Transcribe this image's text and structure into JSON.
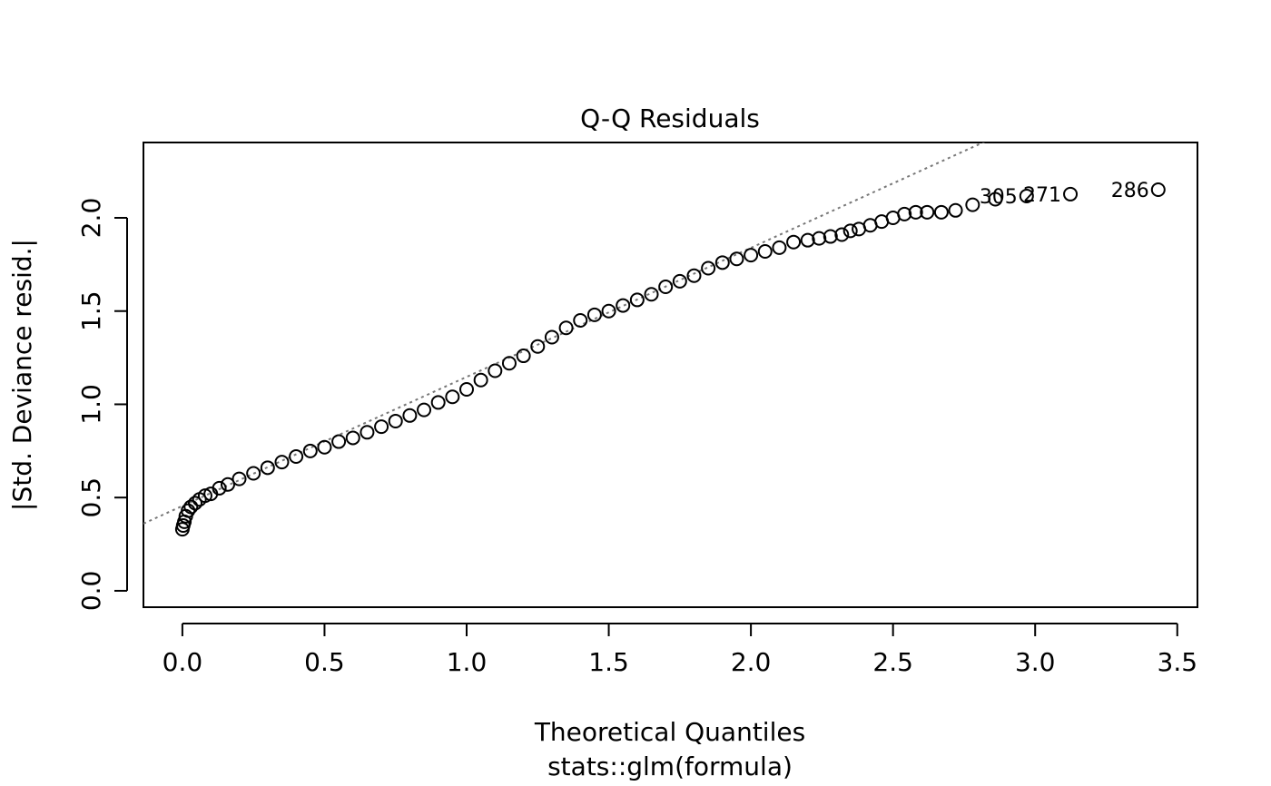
{
  "chart_data": {
    "type": "scatter",
    "title": "Q-Q Residuals",
    "xlabel": "Theoretical Quantiles",
    "subtitle": "stats::glm(formula)",
    "ylabel": "|Std. Deviance resid.|",
    "x": [
      0,
      0.003,
      0.007,
      0.012,
      0.02,
      0.03,
      0.045,
      0.06,
      0.08,
      0.1,
      0.13,
      0.16,
      0.2,
      0.25,
      0.3,
      0.35,
      0.4,
      0.45,
      0.5,
      0.55,
      0.6,
      0.65,
      0.7,
      0.75,
      0.8,
      0.85,
      0.9,
      0.95,
      1.0,
      1.05,
      1.1,
      1.15,
      1.2,
      1.25,
      1.3,
      1.35,
      1.4,
      1.45,
      1.5,
      1.55,
      1.6,
      1.65,
      1.7,
      1.75,
      1.8,
      1.85,
      1.9,
      1.95,
      2.0,
      2.05,
      2.1,
      2.15,
      2.2,
      2.24,
      2.28,
      2.32,
      2.35,
      2.38,
      2.42,
      2.46,
      2.5,
      2.54,
      2.58,
      2.62,
      2.67,
      2.72,
      2.78,
      2.86,
      2.97,
      3.124,
      3.433
    ],
    "y": [
      0.33,
      0.35,
      0.37,
      0.4,
      0.43,
      0.45,
      0.47,
      0.49,
      0.51,
      0.52,
      0.55,
      0.57,
      0.6,
      0.63,
      0.66,
      0.69,
      0.72,
      0.75,
      0.77,
      0.8,
      0.82,
      0.85,
      0.88,
      0.91,
      0.94,
      0.97,
      1.01,
      1.04,
      1.08,
      1.13,
      1.18,
      1.22,
      1.26,
      1.31,
      1.36,
      1.41,
      1.45,
      1.48,
      1.5,
      1.53,
      1.56,
      1.59,
      1.63,
      1.66,
      1.69,
      1.73,
      1.76,
      1.78,
      1.8,
      1.82,
      1.84,
      1.87,
      1.88,
      1.89,
      1.9,
      1.91,
      1.93,
      1.94,
      1.96,
      1.98,
      2.0,
      2.02,
      2.03,
      2.03,
      2.03,
      2.04,
      2.07,
      2.1,
      2.117,
      2.127,
      2.151
    ],
    "point_labels": [
      null,
      null,
      null,
      null,
      null,
      null,
      null,
      null,
      null,
      null,
      null,
      null,
      null,
      null,
      null,
      null,
      null,
      null,
      null,
      null,
      null,
      null,
      null,
      null,
      null,
      null,
      null,
      null,
      null,
      null,
      null,
      null,
      null,
      null,
      null,
      null,
      null,
      null,
      null,
      null,
      null,
      null,
      null,
      null,
      null,
      null,
      null,
      null,
      null,
      null,
      null,
      null,
      null,
      null,
      null,
      null,
      null,
      null,
      null,
      null,
      null,
      null,
      null,
      null,
      null,
      null,
      null,
      null,
      "305",
      "271",
      "286"
    ],
    "reference_line": {
      "intercept": 0.455,
      "slope": 0.692
    },
    "color": "#000000",
    "xlim": [
      -0.137,
      3.571
    ],
    "ylim": [
      -0.088,
      2.404
    ],
    "xticks": [
      {
        "value": 0,
        "label": "0.0"
      },
      {
        "value": 0.5,
        "label": "0.5"
      },
      {
        "value": 1,
        "label": "1.0"
      },
      {
        "value": 1.5,
        "label": "1.5"
      },
      {
        "value": 2,
        "label": "2.0"
      },
      {
        "value": 2.5,
        "label": "2.5"
      },
      {
        "value": 3,
        "label": "3.0"
      },
      {
        "value": 3.5,
        "label": "3.5"
      }
    ],
    "yticks": [
      {
        "value": 0,
        "label": "0.0"
      },
      {
        "value": 0.5,
        "label": "0.5"
      },
      {
        "value": 1,
        "label": "1.0"
      },
      {
        "value": 1.5,
        "label": "1.5"
      },
      {
        "value": 2,
        "label": "2.0"
      }
    ]
  }
}
